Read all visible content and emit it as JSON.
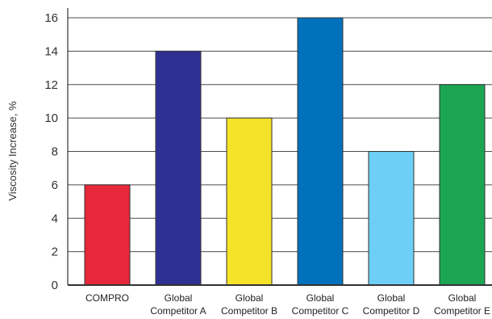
{
  "chart_data": {
    "type": "bar",
    "title": "",
    "xlabel": "",
    "ylabel": "Viscosity Increase, %",
    "ylim": [
      0,
      16
    ],
    "yticks": [
      0,
      2,
      4,
      6,
      8,
      10,
      12,
      14,
      16
    ],
    "grid": true,
    "legend": "none",
    "categories": [
      [
        "COMPRO"
      ],
      [
        "Global",
        "Competitor A"
      ],
      [
        "Global",
        "Competitor B"
      ],
      [
        "Global",
        "Competitor C"
      ],
      [
        "Global",
        "Competitor D"
      ],
      [
        "Global",
        "Competitor E"
      ]
    ],
    "values": [
      6,
      14,
      10,
      16,
      8,
      12
    ],
    "colors": [
      "#e6283a",
      "#2e3192",
      "#f5e32a",
      "#0072bc",
      "#6dcff6",
      "#1ba553"
    ]
  }
}
